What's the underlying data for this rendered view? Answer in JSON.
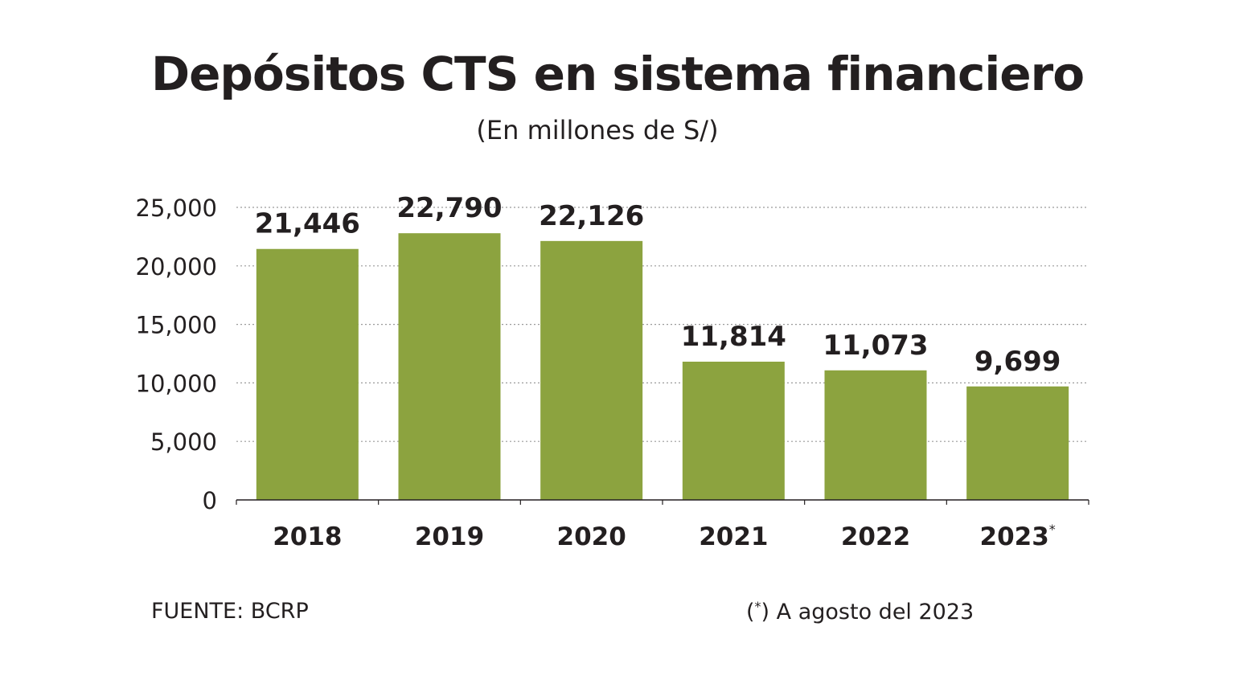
{
  "chart_data": {
    "type": "bar",
    "title": "Depósitos CTS en sistema financiero",
    "subtitle": "(En millones de S/)",
    "categories": [
      "2018",
      "2019",
      "2020",
      "2021",
      "2022",
      "2023"
    ],
    "category_marks": [
      "",
      "",
      "",
      "",
      "",
      "*"
    ],
    "values": [
      21446,
      22790,
      22126,
      11814,
      11073,
      9699
    ],
    "value_labels": [
      "21,446",
      "22,790",
      "22,126",
      "11,814",
      "11,073",
      "9,699"
    ],
    "ylim": [
      0,
      25000
    ],
    "yticks": [
      0,
      5000,
      10000,
      15000,
      20000,
      25000
    ],
    "ytick_labels": [
      "0",
      "5,000",
      "10,000",
      "15,000",
      "20,000",
      "25,000"
    ],
    "grid": true,
    "bar_color": "#8ca33f",
    "xlabel": "",
    "ylabel": ""
  },
  "footer": {
    "source": "FUENTE: BCRP",
    "note_mark": "*",
    "note_open": "(",
    "note_close": ") A agosto del 2023"
  }
}
